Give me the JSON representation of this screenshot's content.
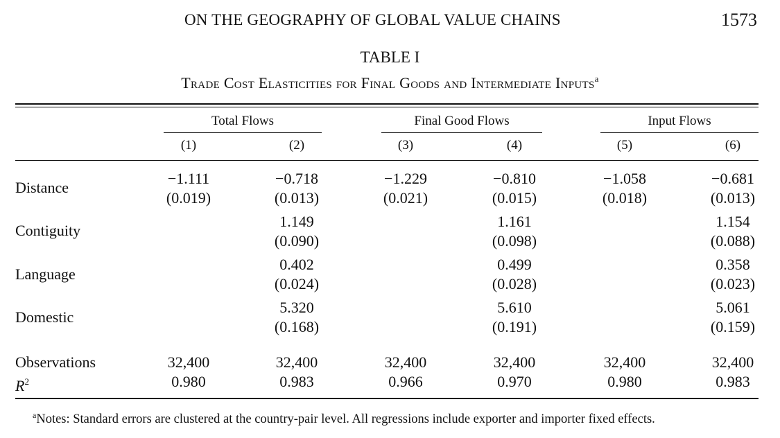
{
  "running_head": {
    "title": "ON THE GEOGRAPHY OF GLOBAL VALUE CHAINS",
    "page_number": "1573"
  },
  "table": {
    "label": "TABLE I",
    "caption": "Trade Cost Elasticities for Final Goods and Intermediate Inputs",
    "caption_marker": "a",
    "groups": [
      "Total Flows",
      "Final Good Flows",
      "Input Flows"
    ],
    "columns": [
      "(1)",
      "(2)",
      "(3)",
      "(4)",
      "(5)",
      "(6)"
    ],
    "rows": [
      {
        "label": "Distance",
        "cells": [
          {
            "coef": "−1.111",
            "se": "(0.019)"
          },
          {
            "coef": "−0.718",
            "se": "(0.013)"
          },
          {
            "coef": "−1.229",
            "se": "(0.021)"
          },
          {
            "coef": "−0.810",
            "se": "(0.015)"
          },
          {
            "coef": "−1.058",
            "se": "(0.018)"
          },
          {
            "coef": "−0.681",
            "se": "(0.013)"
          }
        ]
      },
      {
        "label": "Contiguity",
        "cells": [
          {
            "coef": "",
            "se": ""
          },
          {
            "coef": "1.149",
            "se": "(0.090)"
          },
          {
            "coef": "",
            "se": ""
          },
          {
            "coef": "1.161",
            "se": "(0.098)"
          },
          {
            "coef": "",
            "se": ""
          },
          {
            "coef": "1.154",
            "se": "(0.088)"
          }
        ]
      },
      {
        "label": "Language",
        "cells": [
          {
            "coef": "",
            "se": ""
          },
          {
            "coef": "0.402",
            "se": "(0.024)"
          },
          {
            "coef": "",
            "se": ""
          },
          {
            "coef": "0.499",
            "se": "(0.028)"
          },
          {
            "coef": "",
            "se": ""
          },
          {
            "coef": "0.358",
            "se": "(0.023)"
          }
        ]
      },
      {
        "label": "Domestic",
        "cells": [
          {
            "coef": "",
            "se": ""
          },
          {
            "coef": "5.320",
            "se": "(0.168)"
          },
          {
            "coef": "",
            "se": ""
          },
          {
            "coef": "5.610",
            "se": "(0.191)"
          },
          {
            "coef": "",
            "se": ""
          },
          {
            "coef": "5.061",
            "se": "(0.159)"
          }
        ]
      }
    ],
    "observations": {
      "label": "Observations",
      "values": [
        "32,400",
        "32,400",
        "32,400",
        "32,400",
        "32,400",
        "32,400"
      ]
    },
    "r2": {
      "label_base": "R",
      "label_sup": "2",
      "values": [
        "0.980",
        "0.983",
        "0.966",
        "0.970",
        "0.980",
        "0.983"
      ]
    },
    "notes": {
      "marker": "a",
      "text": "Notes: Standard errors are clustered at the country-pair level. All regressions include exporter and importer fixed effects."
    }
  }
}
